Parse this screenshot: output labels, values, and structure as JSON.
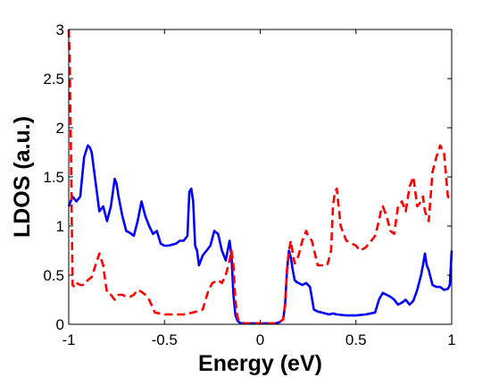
{
  "chart_data": {
    "type": "line",
    "title": "",
    "xlabel": "Energy (eV)",
    "ylabel": "LDOS (a.u.)",
    "xlim": [
      -1,
      1
    ],
    "ylim": [
      0,
      3
    ],
    "xticks": [
      -1,
      -0.5,
      0,
      0.5,
      1
    ],
    "xtick_labels": [
      "-1",
      "-0.5",
      "0",
      "0.5",
      "1"
    ],
    "yticks": [
      0,
      0.5,
      1,
      1.5,
      2,
      2.5,
      3
    ],
    "ytick_labels": [
      "0",
      "0.5",
      "1",
      "1.5",
      "2",
      "2.5",
      "3"
    ],
    "grid": false,
    "legend": "none",
    "series": [
      {
        "color": "#0000ff",
        "style": "solid",
        "x": [
          -1.0,
          -0.98,
          -0.96,
          -0.94,
          -0.92,
          -0.9,
          -0.89,
          -0.88,
          -0.86,
          -0.84,
          -0.82,
          -0.8,
          -0.78,
          -0.76,
          -0.75,
          -0.74,
          -0.72,
          -0.7,
          -0.68,
          -0.66,
          -0.64,
          -0.62,
          -0.6,
          -0.58,
          -0.56,
          -0.54,
          -0.52,
          -0.5,
          -0.48,
          -0.46,
          -0.44,
          -0.42,
          -0.4,
          -0.38,
          -0.37,
          -0.36,
          -0.35,
          -0.34,
          -0.33,
          -0.32,
          -0.3,
          -0.28,
          -0.26,
          -0.24,
          -0.22,
          -0.2,
          -0.18,
          -0.16,
          -0.15,
          -0.14,
          -0.13,
          -0.12,
          -0.11,
          -0.1,
          -0.09,
          -0.08,
          -0.06,
          -0.04,
          -0.02,
          0.0,
          0.02,
          0.04,
          0.06,
          0.08,
          0.1,
          0.12,
          0.13,
          0.14,
          0.15,
          0.16,
          0.17,
          0.18,
          0.19,
          0.2,
          0.22,
          0.24,
          0.26,
          0.28,
          0.3,
          0.32,
          0.34,
          0.36,
          0.38,
          0.4,
          0.45,
          0.5,
          0.55,
          0.6,
          0.62,
          0.64,
          0.66,
          0.68,
          0.7,
          0.72,
          0.74,
          0.76,
          0.78,
          0.8,
          0.82,
          0.84,
          0.85,
          0.86,
          0.87,
          0.88,
          0.9,
          0.92,
          0.94,
          0.96,
          0.98,
          0.99,
          1.0
        ],
        "y": [
          1.2,
          1.3,
          1.25,
          1.3,
          1.7,
          1.82,
          1.8,
          1.75,
          1.45,
          1.15,
          1.2,
          1.05,
          1.2,
          1.48,
          1.43,
          1.3,
          1.1,
          0.95,
          0.93,
          0.9,
          1.05,
          1.25,
          1.1,
          1.0,
          0.92,
          0.95,
          0.82,
          0.8,
          0.8,
          0.81,
          0.82,
          0.85,
          0.85,
          0.9,
          1.35,
          1.38,
          1.25,
          0.8,
          0.75,
          0.6,
          0.7,
          0.75,
          0.8,
          0.95,
          0.92,
          0.75,
          0.65,
          0.85,
          0.7,
          0.3,
          0.1,
          0.04,
          0.02,
          0.01,
          0.01,
          0.01,
          0.01,
          0.01,
          0.01,
          0.01,
          0.01,
          0.01,
          0.01,
          0.01,
          0.02,
          0.05,
          0.2,
          0.55,
          0.75,
          0.68,
          0.55,
          0.45,
          0.43,
          0.42,
          0.4,
          0.42,
          0.38,
          0.15,
          0.13,
          0.12,
          0.11,
          0.1,
          0.11,
          0.1,
          0.09,
          0.09,
          0.1,
          0.12,
          0.25,
          0.32,
          0.3,
          0.28,
          0.25,
          0.2,
          0.22,
          0.25,
          0.2,
          0.24,
          0.35,
          0.5,
          0.6,
          0.72,
          0.6,
          0.55,
          0.4,
          0.38,
          0.38,
          0.35,
          0.36,
          0.4,
          0.75
        ]
      },
      {
        "color": "#ff0000",
        "style": "dashed",
        "x": [
          -1.0,
          -0.995,
          -0.99,
          -0.985,
          -0.98,
          -0.97,
          -0.96,
          -0.94,
          -0.92,
          -0.9,
          -0.88,
          -0.86,
          -0.84,
          -0.82,
          -0.81,
          -0.8,
          -0.78,
          -0.76,
          -0.74,
          -0.72,
          -0.7,
          -0.68,
          -0.66,
          -0.64,
          -0.62,
          -0.6,
          -0.58,
          -0.55,
          -0.5,
          -0.45,
          -0.4,
          -0.35,
          -0.3,
          -0.27,
          -0.25,
          -0.22,
          -0.2,
          -0.18,
          -0.16,
          -0.15,
          -0.14,
          -0.13,
          -0.12,
          -0.11,
          -0.1,
          -0.08,
          -0.06,
          -0.04,
          -0.02,
          0.0,
          0.02,
          0.04,
          0.06,
          0.08,
          0.1,
          0.12,
          0.13,
          0.14,
          0.15,
          0.16,
          0.17,
          0.18,
          0.19,
          0.2,
          0.22,
          0.24,
          0.25,
          0.27,
          0.3,
          0.33,
          0.35,
          0.37,
          0.38,
          0.39,
          0.4,
          0.42,
          0.45,
          0.5,
          0.52,
          0.55,
          0.58,
          0.6,
          0.62,
          0.63,
          0.64,
          0.66,
          0.68,
          0.7,
          0.72,
          0.74,
          0.76,
          0.78,
          0.8,
          0.81,
          0.82,
          0.84,
          0.85,
          0.86,
          0.88,
          0.9,
          0.92,
          0.94,
          0.96,
          0.98,
          1.0
        ],
        "y": [
          3.0,
          2.7,
          2.0,
          1.2,
          0.4,
          0.38,
          0.42,
          0.4,
          0.4,
          0.45,
          0.48,
          0.6,
          0.72,
          0.6,
          0.45,
          0.32,
          0.3,
          0.25,
          0.3,
          0.3,
          0.28,
          0.28,
          0.3,
          0.35,
          0.33,
          0.3,
          0.25,
          0.12,
          0.1,
          0.1,
          0.1,
          0.12,
          0.15,
          0.35,
          0.42,
          0.45,
          0.42,
          0.5,
          0.65,
          0.75,
          0.6,
          0.25,
          0.08,
          0.03,
          0.02,
          0.01,
          0.01,
          0.01,
          0.01,
          0.01,
          0.01,
          0.01,
          0.01,
          0.01,
          0.02,
          0.05,
          0.2,
          0.55,
          0.75,
          0.85,
          0.72,
          0.62,
          0.65,
          0.7,
          0.85,
          0.95,
          0.9,
          0.85,
          0.6,
          0.6,
          0.6,
          0.75,
          1.2,
          1.35,
          1.38,
          1.0,
          0.85,
          0.8,
          0.75,
          0.78,
          0.85,
          0.9,
          1.05,
          1.15,
          1.2,
          1.1,
          0.95,
          0.92,
          1.2,
          1.25,
          1.15,
          1.4,
          1.5,
          1.35,
          1.2,
          1.25,
          1.3,
          1.15,
          1.05,
          1.55,
          1.7,
          1.82,
          1.75,
          1.3,
          1.25
        ]
      }
    ]
  }
}
